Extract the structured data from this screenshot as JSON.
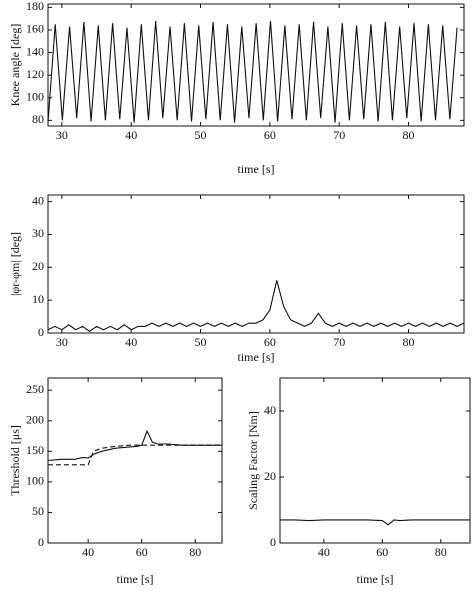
{
  "chart_data": [
    {
      "type": "line",
      "x_label": "time [s]",
      "y_label": "Knee angle [deg]",
      "xlim": [
        28,
        88
      ],
      "xticks": [
        30,
        40,
        50,
        60,
        70,
        80
      ],
      "ylim": [
        75,
        183
      ],
      "yticks": [
        80,
        100,
        120,
        140,
        160,
        180
      ],
      "x": [
        28.0,
        29.04,
        30.07,
        31.11,
        32.14,
        33.18,
        34.21,
        35.25,
        36.28,
        37.32,
        38.35,
        39.39,
        40.42,
        41.46,
        42.49,
        43.53,
        44.56,
        45.6,
        46.63,
        47.67,
        48.7,
        49.74,
        50.77,
        51.81,
        52.84,
        53.88,
        54.91,
        55.95,
        56.98,
        58.02,
        59.05,
        60.09,
        61.12,
        62.16,
        63.19,
        64.23,
        65.26,
        66.3,
        67.33,
        68.37,
        69.4,
        70.44,
        71.47,
        72.51,
        73.54,
        74.58,
        75.61,
        76.65,
        77.68,
        78.72,
        79.75,
        80.79,
        81.82,
        82.86,
        83.89,
        84.93,
        85.96,
        87.0
      ],
      "series": [
        {
          "color": "#111111",
          "style": "solid",
          "values": [
            78,
            165,
            80,
            163,
            82,
            167,
            79,
            164,
            80,
            166,
            81,
            162,
            78,
            165,
            80,
            168,
            82,
            163,
            80,
            166,
            79,
            164,
            81,
            167,
            80,
            165,
            78,
            163,
            82,
            166,
            80,
            168,
            79,
            164,
            81,
            165,
            80,
            167,
            82,
            163,
            78,
            166,
            80,
            164,
            81,
            165,
            79,
            167,
            80,
            163,
            82,
            166,
            79,
            165,
            80,
            164,
            81,
            162
          ]
        }
      ]
    },
    {
      "type": "line",
      "x_label": "time [s]",
      "y_label": "|φr-φm| [deg]",
      "xlim": [
        28,
        88
      ],
      "xticks": [
        30,
        40,
        50,
        60,
        70,
        80
      ],
      "ylim": [
        0,
        42
      ],
      "yticks": [
        0,
        10,
        20,
        30,
        40
      ],
      "x": [
        28,
        29,
        30,
        31,
        32,
        33,
        34,
        35,
        36,
        37,
        38,
        39,
        40,
        41,
        42,
        43,
        44,
        45,
        46,
        47,
        48,
        49,
        50,
        51,
        52,
        53,
        54,
        55,
        56,
        57,
        58,
        59,
        60,
        61,
        62,
        63,
        64,
        65,
        66,
        67,
        68,
        69,
        70,
        71,
        72,
        73,
        74,
        75,
        76,
        77,
        78,
        79,
        80,
        81,
        82,
        83,
        84,
        85,
        86,
        87,
        88
      ],
      "series": [
        {
          "color": "#111111",
          "style": "solid",
          "values": [
            1,
            2,
            1,
            2.5,
            1,
            2,
            0.5,
            2,
            1,
            2,
            1,
            2.5,
            1,
            2,
            2,
            3,
            2,
            3,
            2,
            3,
            2,
            3,
            2,
            3,
            2,
            3,
            2,
            3,
            2,
            3,
            3,
            4,
            7,
            16,
            8,
            4,
            3,
            2,
            3,
            6,
            3,
            2,
            3,
            2,
            3,
            2,
            3,
            2,
            3,
            2,
            3,
            2,
            3,
            2,
            3,
            2,
            3,
            2,
            3,
            2,
            3
          ]
        }
      ]
    },
    {
      "type": "line",
      "x_label": "time [s]",
      "y_label": "Threshold [μs]",
      "xlim": [
        25,
        90
      ],
      "xticks": [
        40,
        60,
        80
      ],
      "ylim": [
        0,
        270
      ],
      "yticks": [
        0,
        50,
        100,
        150,
        200,
        250
      ],
      "x": [
        25,
        30,
        35,
        38,
        40,
        42,
        45,
        50,
        55,
        58,
        60,
        62,
        64,
        66,
        70,
        75,
        80,
        85,
        90
      ],
      "series": [
        {
          "color": "#111111",
          "style": "solid",
          "values": [
            135,
            137,
            137,
            140,
            139,
            145,
            150,
            155,
            157,
            158,
            160,
            183,
            165,
            162,
            162,
            160,
            160,
            160,
            160
          ]
        },
        {
          "color": "#111111",
          "style": "dashed",
          "values": [
            128,
            128,
            128,
            128,
            128,
            150,
            155,
            158,
            160,
            160,
            160,
            160,
            160,
            160,
            160,
            160,
            160,
            160,
            160
          ]
        }
      ]
    },
    {
      "type": "line",
      "x_label": "time [s]",
      "y_label": "Scaling Factor [Nm]",
      "xlim": [
        25,
        90
      ],
      "xticks": [
        40,
        60,
        80
      ],
      "ylim": [
        0,
        50
      ],
      "yticks": [
        0,
        20,
        40
      ],
      "x": [
        25,
        30,
        35,
        40,
        45,
        50,
        55,
        60,
        62,
        64,
        66,
        70,
        75,
        80,
        85,
        90
      ],
      "series": [
        {
          "color": "#111111",
          "style": "solid",
          "values": [
            7,
            7,
            6.8,
            7,
            7,
            7,
            7,
            6.8,
            5.5,
            7,
            6.8,
            7,
            7,
            7,
            7,
            7
          ]
        }
      ]
    }
  ]
}
